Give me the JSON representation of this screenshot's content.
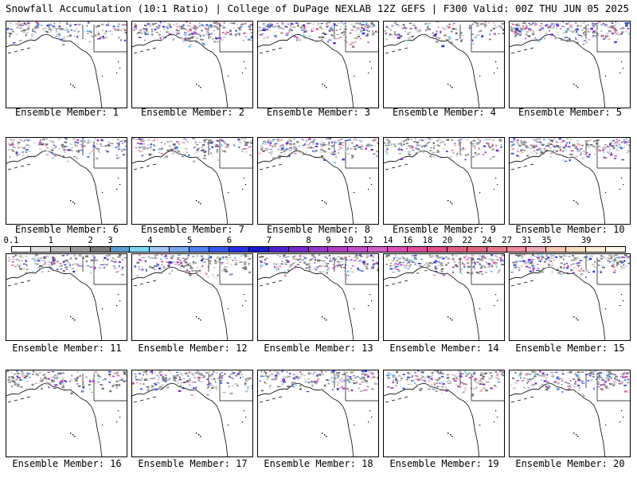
{
  "header": {
    "left_title": "Snowfall Accumulation (10:1 Ratio) | College of DuPage NEXLAB",
    "right_title": "12Z GEFS | F300 Valid: 00Z THU JUN 05 2025"
  },
  "caption_prefix": "Ensemble Member: ",
  "members": [
    {
      "id": "1",
      "intensity": 0.7
    },
    {
      "id": "2",
      "intensity": 0.9
    },
    {
      "id": "3",
      "intensity": 0.8
    },
    {
      "id": "4",
      "intensity": 0.55
    },
    {
      "id": "5",
      "intensity": 0.95
    },
    {
      "id": "6",
      "intensity": 0.75
    },
    {
      "id": "7",
      "intensity": 0.7
    },
    {
      "id": "8",
      "intensity": 0.85
    },
    {
      "id": "9",
      "intensity": 0.7
    },
    {
      "id": "10",
      "intensity": 0.9
    },
    {
      "id": "11",
      "intensity": 0.65
    },
    {
      "id": "12",
      "intensity": 0.7
    },
    {
      "id": "13",
      "intensity": 0.75
    },
    {
      "id": "14",
      "intensity": 0.8
    },
    {
      "id": "15",
      "intensity": 0.85
    },
    {
      "id": "16",
      "intensity": 0.7
    },
    {
      "id": "17",
      "intensity": 0.8
    },
    {
      "id": "18",
      "intensity": 0.8
    },
    {
      "id": "19",
      "intensity": 0.75
    },
    {
      "id": "20",
      "intensity": 0.85
    }
  ],
  "legend": {
    "labels": [
      "0.1",
      "1",
      "2",
      "3",
      "4",
      "5",
      "6",
      "7",
      "8",
      "9",
      "10",
      "12",
      "14",
      "16",
      "18",
      "20",
      "22",
      "24",
      "27",
      "31",
      "35",
      "39"
    ],
    "colors": [
      "#ffffff",
      "#e0e0e0",
      "#bdbdbd",
      "#9a9a9a",
      "#7a7a7a",
      "#5aa0d0",
      "#7fd6f0",
      "#a0c8f4",
      "#78a8f0",
      "#5080ec",
      "#3a5af0",
      "#2a30e8",
      "#1818c8",
      "#5020d0",
      "#7a28d0",
      "#9a38c8",
      "#b040c4",
      "#c450c8",
      "#d060c8",
      "#dc50b4",
      "#e04c98",
      "#e0508a",
      "#e06080",
      "#e06878",
      "#e4788a",
      "#ec8c9c",
      "#f0a8b4",
      "#f4c8b0",
      "#f8dcc0",
      "#fcecd8",
      "#fff6ea"
    ],
    "label_cells": [
      0,
      2,
      4,
      5,
      7,
      9,
      11,
      13,
      15,
      16,
      17,
      18,
      19,
      20,
      21,
      22,
      23,
      24,
      25,
      26,
      27,
      29
    ]
  }
}
